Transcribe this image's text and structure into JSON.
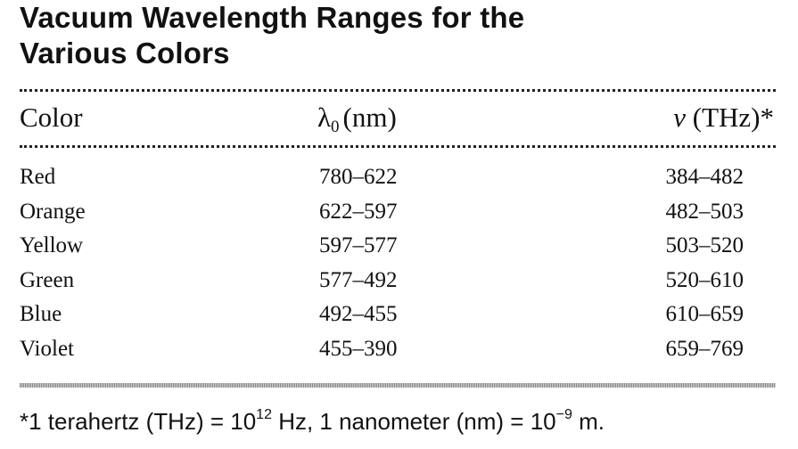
{
  "title": {
    "line1": "Vacuum Wavelength Ranges for the",
    "line2": "Various Colors"
  },
  "table": {
    "headers": {
      "color": "Color",
      "lambda_symbol": "λ",
      "lambda_subscript": "0",
      "lambda_unit": "(nm)",
      "nu_symbol": "ν",
      "nu_unit": "(THz)*"
    },
    "rows": [
      {
        "color": "Red",
        "lambda": "780–622",
        "nu": "384–482"
      },
      {
        "color": "Orange",
        "lambda": "622–597",
        "nu": "482–503"
      },
      {
        "color": "Yellow",
        "lambda": "597–577",
        "nu": "503–520"
      },
      {
        "color": "Green",
        "lambda": "577–492",
        "nu": "520–610"
      },
      {
        "color": "Blue",
        "lambda": "492–455",
        "nu": "610–659"
      },
      {
        "color": "Violet",
        "lambda": "455–390",
        "nu": "659–769"
      }
    ]
  },
  "footnote": {
    "marker": "*",
    "part1": "1 terahertz (THz) = 10",
    "exp1": "12",
    "part2": " Hz, 1 nanometer (nm) = 10",
    "exp2": "−9",
    "part3": " m."
  }
}
